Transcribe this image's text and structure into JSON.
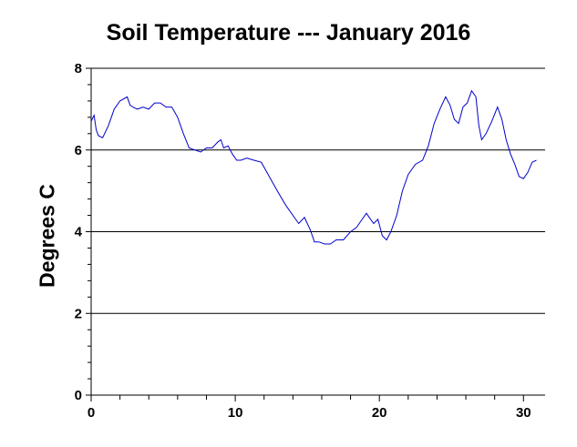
{
  "chart_data": {
    "type": "line",
    "title": "Soil Temperature --- January 2016",
    "xlabel": "",
    "ylabel": "Degrees C",
    "xlim": [
      0,
      31.5
    ],
    "ylim": [
      0,
      8
    ],
    "x_ticks": [
      0,
      10,
      20,
      30
    ],
    "y_ticks": [
      0,
      2,
      4,
      6,
      8
    ],
    "grid": "horizontal",
    "line_color": "#0000cc",
    "series": [
      {
        "x": [
          0,
          0.2,
          0.35,
          0.5,
          0.8,
          1.2,
          1.6,
          2.0,
          2.5,
          2.7,
          2.9,
          3.2,
          3.6,
          4.0,
          4.4,
          4.8,
          5.2,
          5.6,
          6.0,
          6.4,
          6.8,
          7.2,
          7.6,
          8.0,
          8.4,
          8.8,
          9.0,
          9.2,
          9.5,
          9.8,
          10.1,
          10.4,
          10.8,
          11.3,
          11.8,
          12.2,
          12.6,
          13.0,
          13.5,
          14.0,
          14.4,
          14.8,
          15.2,
          15.5,
          15.8,
          16.2,
          16.6,
          17.0,
          17.5,
          18.0,
          18.4,
          18.8,
          19.1,
          19.3,
          19.6,
          19.9,
          20.2,
          20.5,
          20.8,
          21.2,
          21.6,
          22.0,
          22.5,
          23.0,
          23.4,
          23.8,
          24.2,
          24.6,
          24.9,
          25.2,
          25.5,
          25.8,
          26.1,
          26.4,
          26.7,
          26.9,
          27.1,
          27.4,
          27.8,
          28.2,
          28.5,
          28.8,
          29.1,
          29.4,
          29.7,
          30.0,
          30.3,
          30.6,
          30.9
        ],
        "y": [
          6.7,
          6.85,
          6.5,
          6.35,
          6.3,
          6.6,
          7.0,
          7.2,
          7.3,
          7.1,
          7.05,
          7.0,
          7.05,
          7.0,
          7.15,
          7.15,
          7.05,
          7.05,
          6.8,
          6.4,
          6.05,
          6.0,
          5.95,
          6.05,
          6.05,
          6.2,
          6.25,
          6.05,
          6.1,
          5.9,
          5.75,
          5.75,
          5.8,
          5.75,
          5.7,
          5.45,
          5.2,
          4.95,
          4.65,
          4.4,
          4.2,
          4.35,
          4.05,
          3.75,
          3.75,
          3.7,
          3.7,
          3.8,
          3.8,
          4.0,
          4.1,
          4.3,
          4.45,
          4.35,
          4.2,
          4.3,
          3.9,
          3.8,
          4.0,
          4.4,
          5.0,
          5.4,
          5.65,
          5.75,
          6.1,
          6.65,
          7.0,
          7.3,
          7.1,
          6.75,
          6.65,
          7.05,
          7.15,
          7.45,
          7.3,
          6.6,
          6.25,
          6.4,
          6.7,
          7.05,
          6.75,
          6.25,
          5.9,
          5.65,
          5.35,
          5.3,
          5.45,
          5.7,
          5.75
        ]
      }
    ]
  }
}
